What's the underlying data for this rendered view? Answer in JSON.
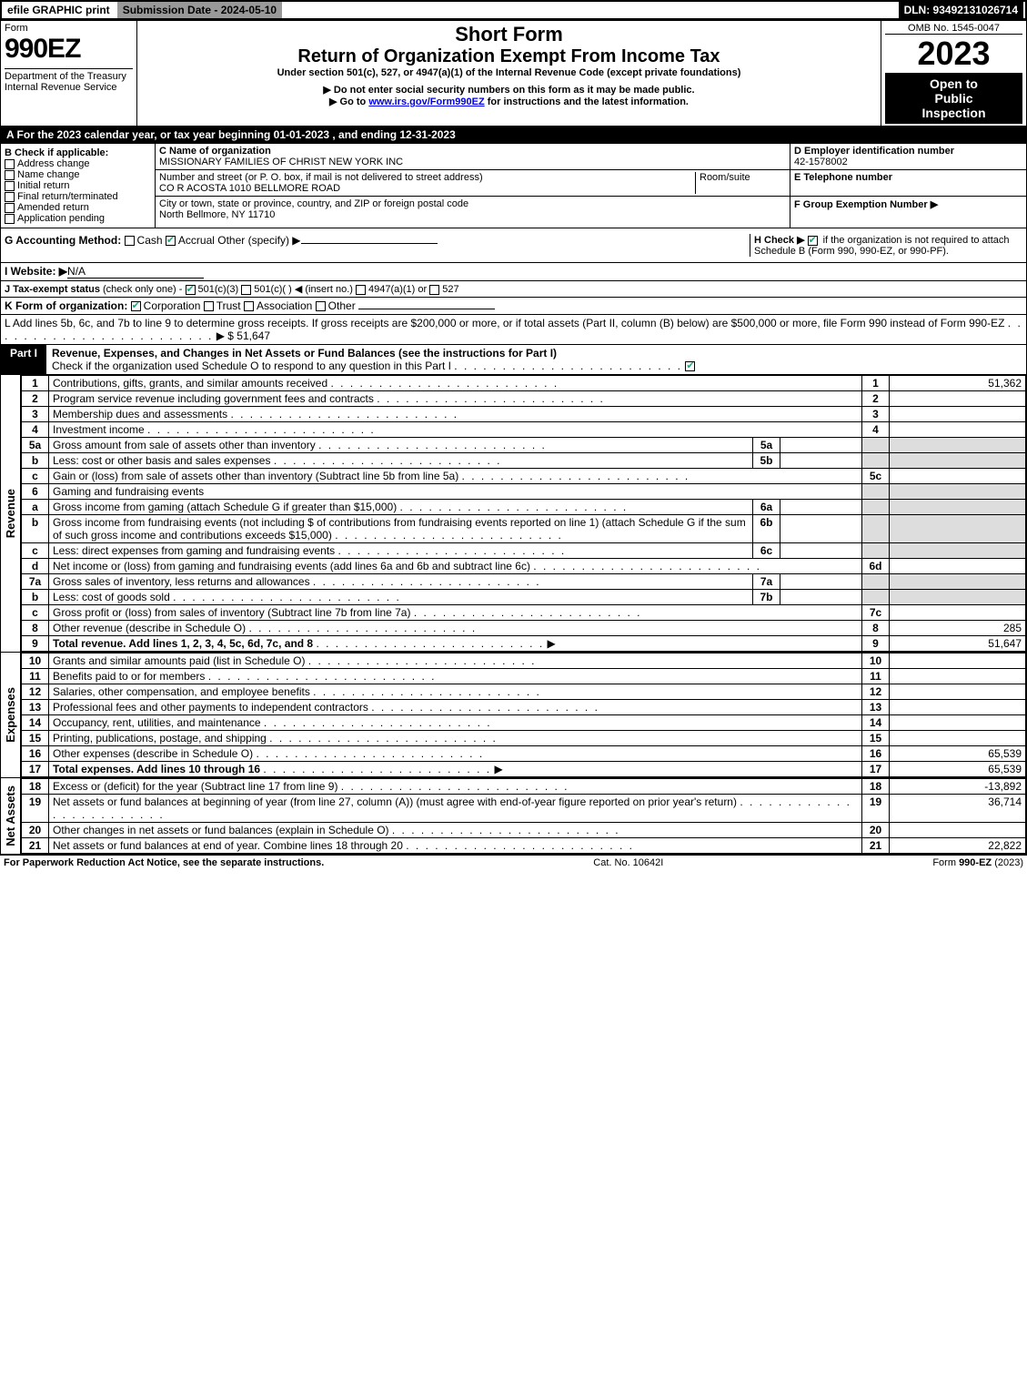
{
  "topbar": {
    "efile_label": "efile GRAPHIC print",
    "submission_label": "Submission Date - 2024-05-10",
    "dln_label": "DLN: 93492131026714"
  },
  "header": {
    "form_label": "Form",
    "form_no": "990EZ",
    "dept_line1": "Department of the Treasury",
    "dept_line2": "Internal Revenue Service",
    "short_form": "Short Form",
    "return_title": "Return of Organization Exempt From Income Tax",
    "under_section": "Under section 501(c), 527, or 4947(a)(1) of the Internal Revenue Code (except private foundations)",
    "no_ssn": "▶ Do not enter social security numbers on this form as it may be made public.",
    "goto": "▶ Go to ",
    "goto_link": "www.irs.gov/Form990EZ",
    "goto_tail": " for instructions and the latest information.",
    "omb": "OMB No. 1545-0047",
    "year": "2023",
    "open1": "Open to",
    "open2": "Public",
    "open3": "Inspection"
  },
  "sectionA": {
    "text": "A  For the 2023 calendar year, or tax year beginning 01-01-2023 , and ending 12-31-2023"
  },
  "sectionB": {
    "title": "B  Check if applicable:",
    "items": [
      "Address change",
      "Name change",
      "Initial return",
      "Final return/terminated",
      "Amended return",
      "Application pending"
    ]
  },
  "sectionC": {
    "c_label": "C Name of organization",
    "c_name": "MISSIONARY FAMILIES OF CHRIST NEW YORK INC",
    "addr_label": "Number and street (or P. O. box, if mail is not delivered to street address)",
    "addr": "CO R ACOSTA 1010 BELLMORE ROAD",
    "room_label": "Room/suite",
    "city_label": "City or town, state or province, country, and ZIP or foreign postal code",
    "city": "North Bellmore, NY  11710"
  },
  "sectionD": {
    "d_label": "D Employer identification number",
    "d_value": "42-1578002",
    "e_label": "E Telephone number",
    "f_label": "F Group Exemption Number  ▶"
  },
  "sectionG": {
    "label": "G Accounting Method:",
    "cash": "Cash",
    "accrual": "Accrual",
    "other": "Other (specify) ▶"
  },
  "sectionH": {
    "label": "H  Check ▶",
    "tail": "if the organization is not required to attach Schedule B (Form 990, 990-EZ, or 990-PF)."
  },
  "sectionI": {
    "label": "I Website: ▶",
    "value": "N/A"
  },
  "sectionJ": {
    "label": "J Tax-exempt status",
    "sub": "(check only one) -",
    "opt1": "501(c)(3)",
    "opt2": "501(c)(   ) ◀ (insert no.)",
    "opt3": "4947(a)(1) or",
    "opt4": "527"
  },
  "sectionK": {
    "label": "K Form of organization:",
    "opts": [
      "Corporation",
      "Trust",
      "Association",
      "Other"
    ]
  },
  "sectionL": {
    "text": "L Add lines 5b, 6c, and 7b to line 9 to determine gross receipts. If gross receipts are $200,000 or more, or if total assets (Part II, column (B) below) are $500,000 or more, file Form 990 instead of Form 990-EZ",
    "tail": "▶ $ 51,647"
  },
  "partI": {
    "label": "Part I",
    "title": "Revenue, Expenses, and Changes in Net Assets or Fund Balances (see the instructions for Part I)",
    "check_text": "Check if the organization used Schedule O to respond to any question in this Part I"
  },
  "lines": [
    {
      "n": "1",
      "text": "Contributions, gifts, grants, and similar amounts received",
      "ref": "1",
      "amt": "51,362"
    },
    {
      "n": "2",
      "text": "Program service revenue including government fees and contracts",
      "ref": "2",
      "amt": ""
    },
    {
      "n": "3",
      "text": "Membership dues and assessments",
      "ref": "3",
      "amt": ""
    },
    {
      "n": "4",
      "text": "Investment income",
      "ref": "4",
      "amt": ""
    },
    {
      "n": "5a",
      "text": "Gross amount from sale of assets other than inventory",
      "sub": "5a",
      "subamt": ""
    },
    {
      "n": "b",
      "text": "Less: cost or other basis and sales expenses",
      "sub": "5b",
      "subamt": ""
    },
    {
      "n": "c",
      "text": "Gain or (loss) from sale of assets other than inventory (Subtract line 5b from line 5a)",
      "ref": "5c",
      "amt": ""
    },
    {
      "n": "6",
      "text": "Gaming and fundraising events",
      "noref": true
    },
    {
      "n": "a",
      "text": "Gross income from gaming (attach Schedule G if greater than $15,000)",
      "sub": "6a",
      "subamt": ""
    },
    {
      "n": "b",
      "text": "Gross income from fundraising events (not including $                    of contributions from fundraising events reported on line 1) (attach Schedule G if the sum of such gross income and contributions exceeds $15,000)",
      "sub": "6b",
      "subamt": ""
    },
    {
      "n": "c",
      "text": "Less: direct expenses from gaming and fundraising events",
      "sub": "6c",
      "subamt": ""
    },
    {
      "n": "d",
      "text": "Net income or (loss) from gaming and fundraising events (add lines 6a and 6b and subtract line 6c)",
      "ref": "6d",
      "amt": ""
    },
    {
      "n": "7a",
      "text": "Gross sales of inventory, less returns and allowances",
      "sub": "7a",
      "subamt": ""
    },
    {
      "n": "b",
      "text": "Less: cost of goods sold",
      "sub": "7b",
      "subamt": ""
    },
    {
      "n": "c",
      "text": "Gross profit or (loss) from sales of inventory (Subtract line 7b from line 7a)",
      "ref": "7c",
      "amt": ""
    },
    {
      "n": "8",
      "text": "Other revenue (describe in Schedule O)",
      "ref": "8",
      "amt": "285"
    },
    {
      "n": "9",
      "text": "Total revenue. Add lines 1, 2, 3, 4, 5c, 6d, 7c, and 8",
      "ref": "9",
      "amt": "51,647",
      "bold": true,
      "arrow": true
    }
  ],
  "expenses": [
    {
      "n": "10",
      "text": "Grants and similar amounts paid (list in Schedule O)",
      "ref": "10",
      "amt": ""
    },
    {
      "n": "11",
      "text": "Benefits paid to or for members",
      "ref": "11",
      "amt": ""
    },
    {
      "n": "12",
      "text": "Salaries, other compensation, and employee benefits",
      "ref": "12",
      "amt": ""
    },
    {
      "n": "13",
      "text": "Professional fees and other payments to independent contractors",
      "ref": "13",
      "amt": ""
    },
    {
      "n": "14",
      "text": "Occupancy, rent, utilities, and maintenance",
      "ref": "14",
      "amt": ""
    },
    {
      "n": "15",
      "text": "Printing, publications, postage, and shipping",
      "ref": "15",
      "amt": ""
    },
    {
      "n": "16",
      "text": "Other expenses (describe in Schedule O)",
      "ref": "16",
      "amt": "65,539"
    },
    {
      "n": "17",
      "text": "Total expenses. Add lines 10 through 16",
      "ref": "17",
      "amt": "65,539",
      "bold": true,
      "arrow": true
    }
  ],
  "netassets": [
    {
      "n": "18",
      "text": "Excess or (deficit) for the year (Subtract line 17 from line 9)",
      "ref": "18",
      "amt": "-13,892"
    },
    {
      "n": "19",
      "text": "Net assets or fund balances at beginning of year (from line 27, column (A)) (must agree with end-of-year figure reported on prior year's return)",
      "ref": "19",
      "amt": "36,714"
    },
    {
      "n": "20",
      "text": "Other changes in net assets or fund balances (explain in Schedule O)",
      "ref": "20",
      "amt": ""
    },
    {
      "n": "21",
      "text": "Net assets or fund balances at end of year. Combine lines 18 through 20",
      "ref": "21",
      "amt": "22,822"
    }
  ],
  "side_labels": {
    "rev": "Revenue",
    "exp": "Expenses",
    "net": "Net Assets"
  },
  "footer": {
    "left": "For Paperwork Reduction Act Notice, see the separate instructions.",
    "center": "Cat. No. 10642I",
    "right": "Form 990-EZ (2023)"
  }
}
